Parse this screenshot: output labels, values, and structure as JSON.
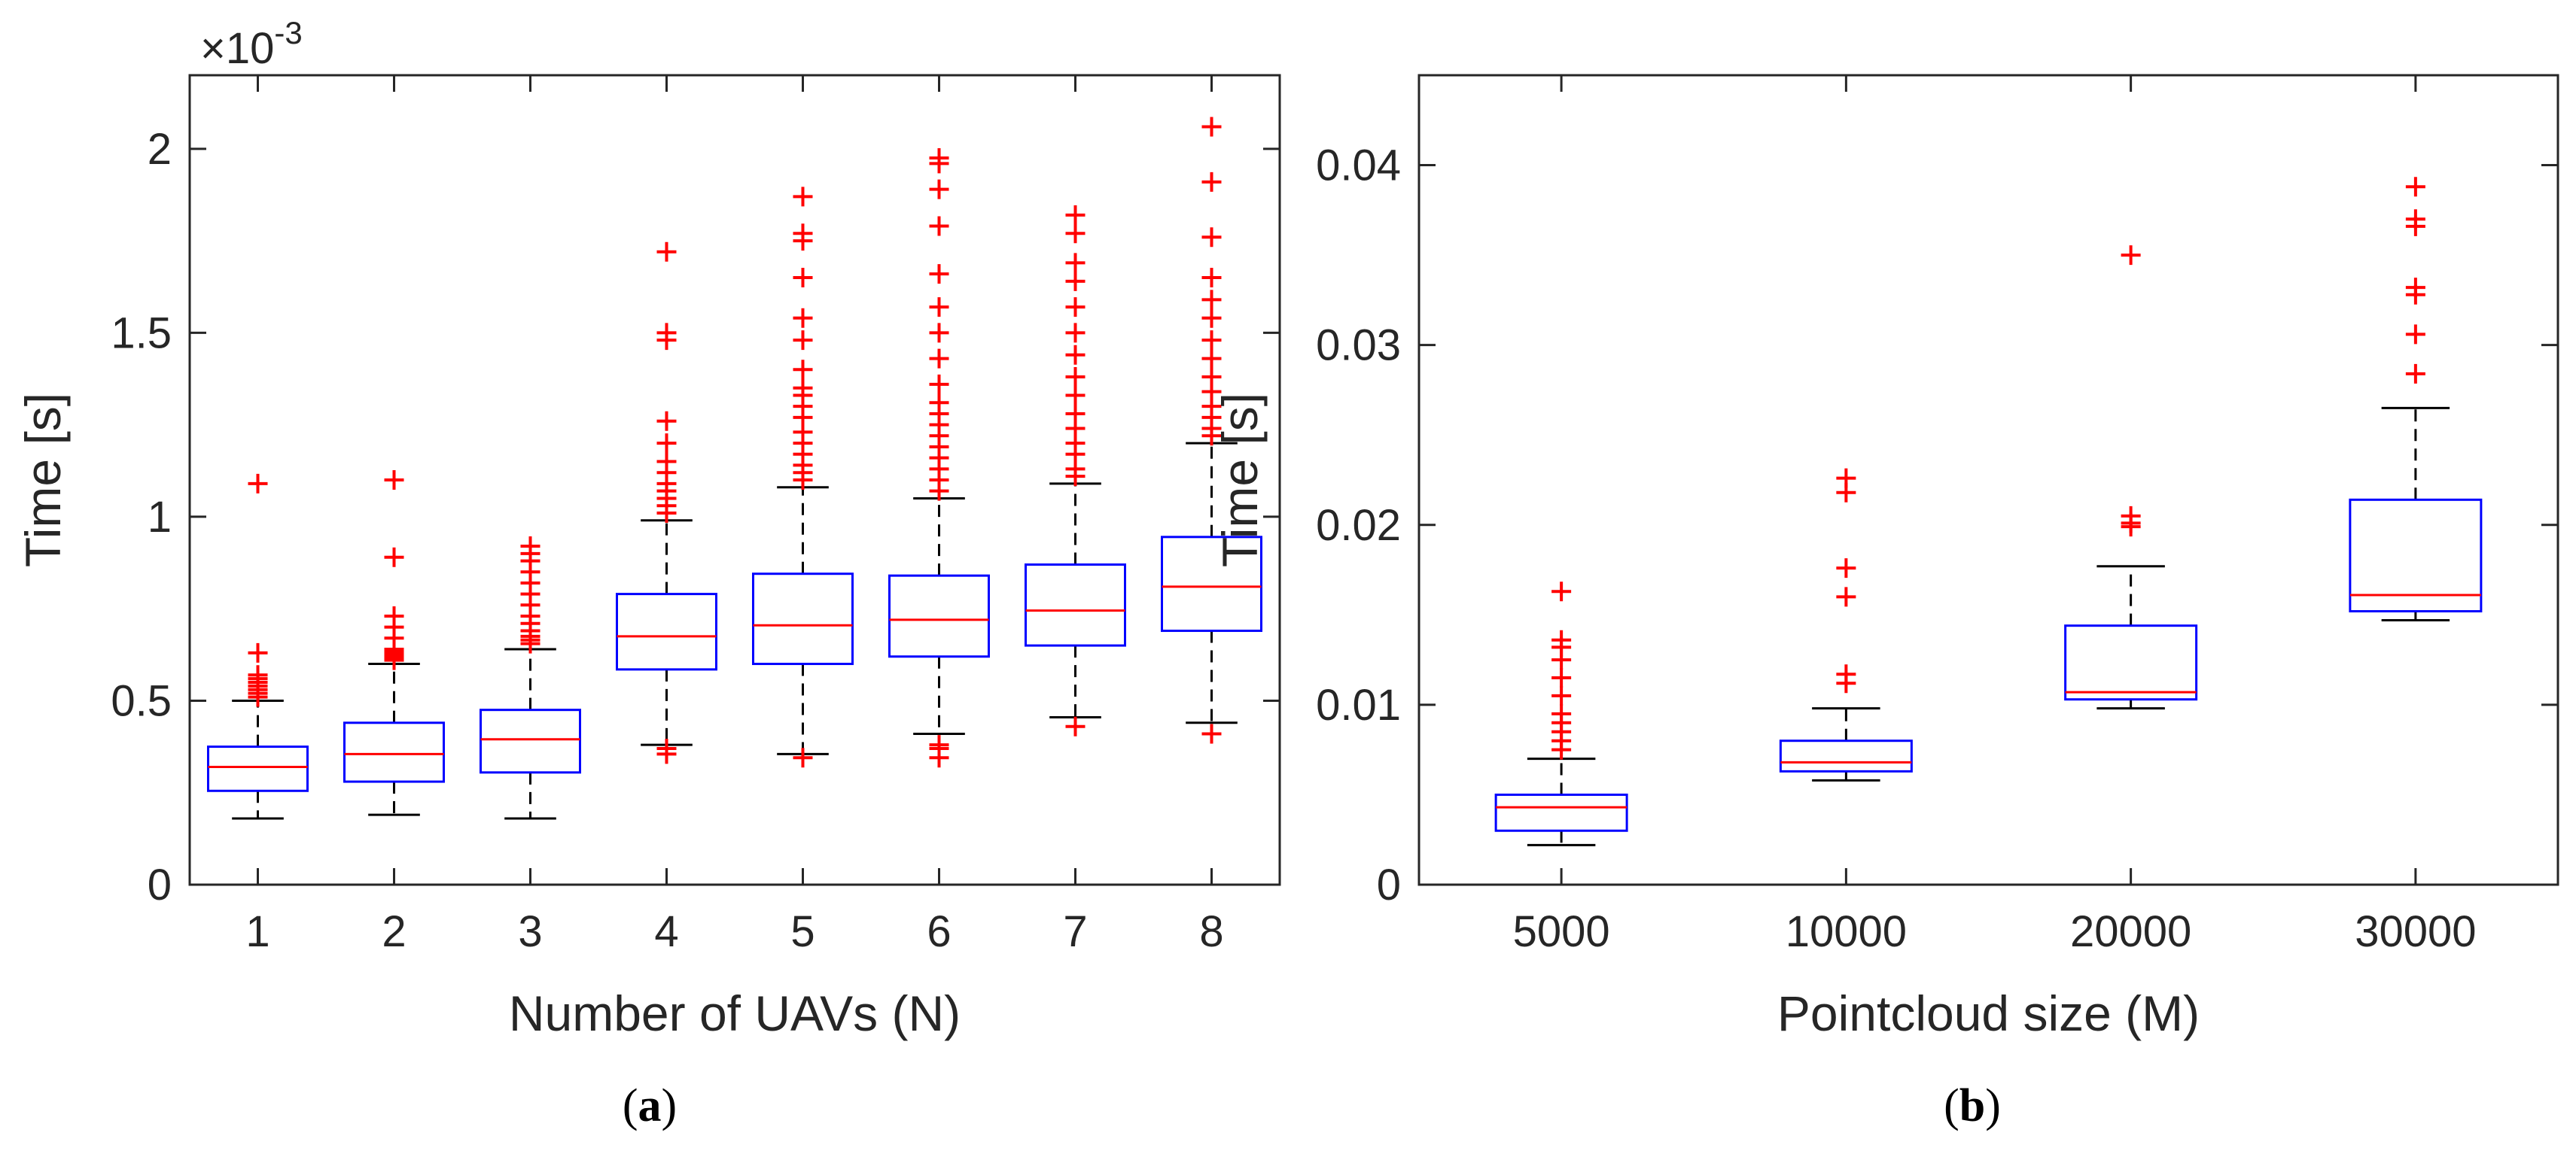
{
  "colors": {
    "box": "#0000ff",
    "median": "#ff0000",
    "outlier": "#ff0000",
    "whisker": "#000000",
    "axis": "#262626"
  },
  "chart_data": [
    {
      "type": "box",
      "panel_label": "a",
      "xlabel": "Number of UAVs (N)",
      "ylabel": "Time [s]",
      "y_exponent": {
        "base": "×10",
        "power": "-3"
      },
      "ylim": [
        0,
        2.2
      ],
      "yticks": [
        0,
        0.5,
        1,
        1.5,
        2
      ],
      "ytick_labels": [
        "0",
        "0.5",
        "1",
        "1.5",
        "2"
      ],
      "categories": [
        "1",
        "2",
        "3",
        "4",
        "5",
        "6",
        "7",
        "8"
      ],
      "boxes": [
        {
          "q1": 0.255,
          "median": 0.32,
          "q3": 0.375,
          "whisker_low": 0.18,
          "whisker_high": 0.5,
          "outliers": [
            0.51,
            0.52,
            0.53,
            0.54,
            0.55,
            0.56,
            0.57,
            0.63,
            1.09
          ]
        },
        {
          "q1": 0.28,
          "median": 0.355,
          "q3": 0.44,
          "whisker_low": 0.19,
          "whisker_high": 0.6,
          "outliers": [
            0.61,
            0.615,
            0.62,
            0.625,
            0.63,
            0.635,
            0.64,
            0.67,
            0.7,
            0.73,
            0.89,
            1.1
          ]
        },
        {
          "q1": 0.305,
          "median": 0.395,
          "q3": 0.475,
          "whisker_low": 0.18,
          "whisker_high": 0.64,
          "outliers": [
            0.655,
            0.665,
            0.675,
            0.69,
            0.71,
            0.73,
            0.76,
            0.79,
            0.82,
            0.85,
            0.88,
            0.9,
            0.92
          ]
        },
        {
          "q1": 0.585,
          "median": 0.675,
          "q3": 0.79,
          "whisker_low": 0.38,
          "whisker_high": 0.99,
          "outliers": [
            0.355,
            0.37,
            1.01,
            1.03,
            1.05,
            1.07,
            1.09,
            1.12,
            1.15,
            1.2,
            1.26,
            1.48,
            1.5,
            1.72
          ]
        },
        {
          "q1": 0.6,
          "median": 0.705,
          "q3": 0.845,
          "whisker_low": 0.355,
          "whisker_high": 1.08,
          "outliers": [
            0.345,
            1.1,
            1.12,
            1.14,
            1.17,
            1.2,
            1.23,
            1.27,
            1.3,
            1.33,
            1.35,
            1.4,
            1.48,
            1.54,
            1.65,
            1.75,
            1.77,
            1.87
          ]
        },
        {
          "q1": 0.62,
          "median": 0.72,
          "q3": 0.84,
          "whisker_low": 0.41,
          "whisker_high": 1.05,
          "outliers": [
            0.345,
            0.37,
            0.38,
            1.07,
            1.1,
            1.13,
            1.16,
            1.19,
            1.22,
            1.25,
            1.28,
            1.31,
            1.36,
            1.43,
            1.5,
            1.57,
            1.66,
            1.79,
            1.89,
            1.96,
            1.975
          ]
        },
        {
          "q1": 0.65,
          "median": 0.745,
          "q3": 0.87,
          "whisker_low": 0.455,
          "whisker_high": 1.09,
          "outliers": [
            0.43,
            1.11,
            1.13,
            1.17,
            1.2,
            1.24,
            1.28,
            1.33,
            1.38,
            1.44,
            1.5,
            1.57,
            1.64,
            1.69,
            1.77,
            1.82
          ]
        },
        {
          "q1": 0.69,
          "median": 0.81,
          "q3": 0.945,
          "whisker_low": 0.44,
          "whisker_high": 1.2,
          "outliers": [
            0.41,
            1.22,
            1.24,
            1.27,
            1.3,
            1.34,
            1.38,
            1.43,
            1.48,
            1.54,
            1.59,
            1.65,
            1.76,
            1.91,
            2.06
          ]
        }
      ]
    },
    {
      "type": "box",
      "panel_label": "b",
      "xlabel": "Pointcloud size (M)",
      "ylabel": "Time [s]",
      "ylim": [
        0,
        0.045
      ],
      "yticks": [
        0,
        0.01,
        0.02,
        0.03,
        0.04
      ],
      "ytick_labels": [
        "0",
        "0.01",
        "0.02",
        "0.03",
        "0.04"
      ],
      "categories": [
        "5000",
        "10000",
        "20000",
        "30000"
      ],
      "boxes": [
        {
          "q1": 0.003,
          "median": 0.0043,
          "q3": 0.005,
          "whisker_low": 0.0022,
          "whisker_high": 0.007,
          "outliers": [
            0.0075,
            0.008,
            0.0085,
            0.009,
            0.0095,
            0.0105,
            0.0115,
            0.0125,
            0.0132,
            0.0136,
            0.0163
          ]
        },
        {
          "q1": 0.0063,
          "median": 0.0068,
          "q3": 0.008,
          "whisker_low": 0.0058,
          "whisker_high": 0.0098,
          "outliers": [
            0.0112,
            0.0117,
            0.016,
            0.0176,
            0.0218,
            0.0226
          ]
        },
        {
          "q1": 0.0103,
          "median": 0.0107,
          "q3": 0.0144,
          "whisker_low": 0.0098,
          "whisker_high": 0.0177,
          "outliers": [
            0.0199,
            0.0201,
            0.0205,
            0.035
          ]
        },
        {
          "q1": 0.0152,
          "median": 0.0161,
          "q3": 0.0214,
          "whisker_low": 0.0147,
          "whisker_high": 0.0265,
          "outliers": [
            0.0284,
            0.0306,
            0.0328,
            0.0332,
            0.0366,
            0.037,
            0.0388
          ]
        }
      ]
    }
  ]
}
